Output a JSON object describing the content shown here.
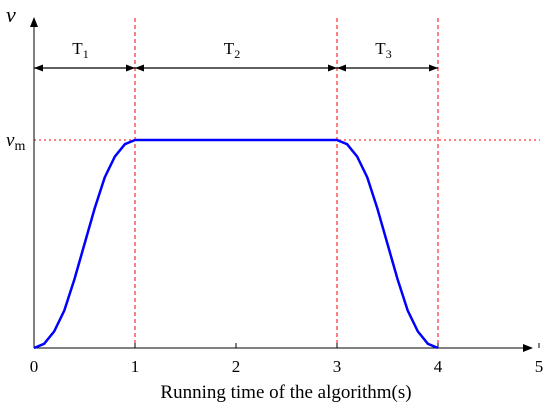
{
  "chart_data": {
    "type": "line",
    "xlabel": "Running time of the algorithm(s)",
    "ylabel": "v",
    "xlim": [
      0,
      5
    ],
    "ylim": [
      0,
      1.0
    ],
    "x_ticks": [
      0,
      1,
      2,
      3,
      4,
      5
    ],
    "y_tick_label": {
      "main": "v",
      "sub": "m",
      "value": 1.0
    },
    "series": [
      {
        "color": "#0000ff",
        "x": [
          0,
          0.1,
          0.2,
          0.3,
          0.4,
          0.5,
          0.6,
          0.7,
          0.8,
          0.9,
          1.0,
          1.5,
          2.0,
          2.5,
          3.0,
          3.1,
          3.2,
          3.3,
          3.4,
          3.5,
          3.6,
          3.7,
          3.8,
          3.9,
          4.0
        ],
        "y": [
          0,
          0.02,
          0.08,
          0.18,
          0.33,
          0.5,
          0.67,
          0.82,
          0.92,
          0.98,
          1.0,
          1.0,
          1.0,
          1.0,
          1.0,
          0.98,
          0.92,
          0.82,
          0.67,
          0.5,
          0.33,
          0.18,
          0.08,
          0.02,
          0
        ]
      }
    ],
    "reference_lines": {
      "color": "#ff0000",
      "vertical_x": [
        1,
        3,
        4
      ],
      "horizontal_y": 1.0
    },
    "phases": [
      {
        "main": "T",
        "sub": "1",
        "from": 0,
        "to": 1
      },
      {
        "main": "T",
        "sub": "2",
        "from": 1,
        "to": 3
      },
      {
        "main": "T",
        "sub": "3",
        "from": 3,
        "to": 4
      }
    ]
  }
}
